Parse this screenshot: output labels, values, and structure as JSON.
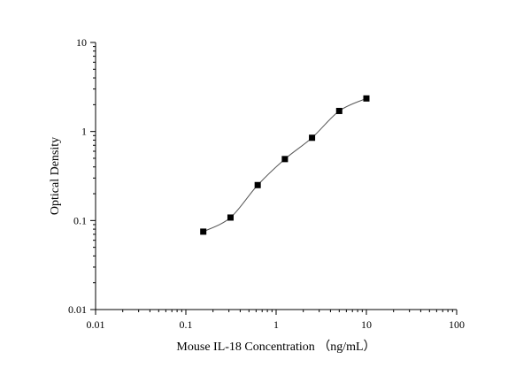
{
  "chart_data": {
    "type": "scatter",
    "title": "",
    "xlabel": "Mouse IL-18 Concentration （ng/mL）",
    "ylabel": "Optical Density",
    "x_scale": "log",
    "y_scale": "log",
    "xlim": [
      0.01,
      100
    ],
    "ylim": [
      0.01,
      10
    ],
    "x_ticks": [
      0.01,
      0.1,
      1,
      10,
      100
    ],
    "x_tick_labels": [
      "0.01",
      "0.1",
      "1",
      "10",
      "100"
    ],
    "y_ticks": [
      0.01,
      0.1,
      1,
      10
    ],
    "y_tick_labels": [
      "0.01",
      "0.1",
      "1",
      "10"
    ],
    "grid": false,
    "legend": "none",
    "fit_curve": true,
    "series": [
      {
        "x": [
          0.156,
          0.3125,
          0.625,
          1.25,
          2.5,
          5,
          10
        ],
        "y": [
          0.075,
          0.108,
          0.25,
          0.49,
          0.85,
          1.7,
          2.35
        ]
      }
    ],
    "colors": {
      "marker": "#000000",
      "curve": "#555555",
      "axis": "#000000"
    }
  }
}
